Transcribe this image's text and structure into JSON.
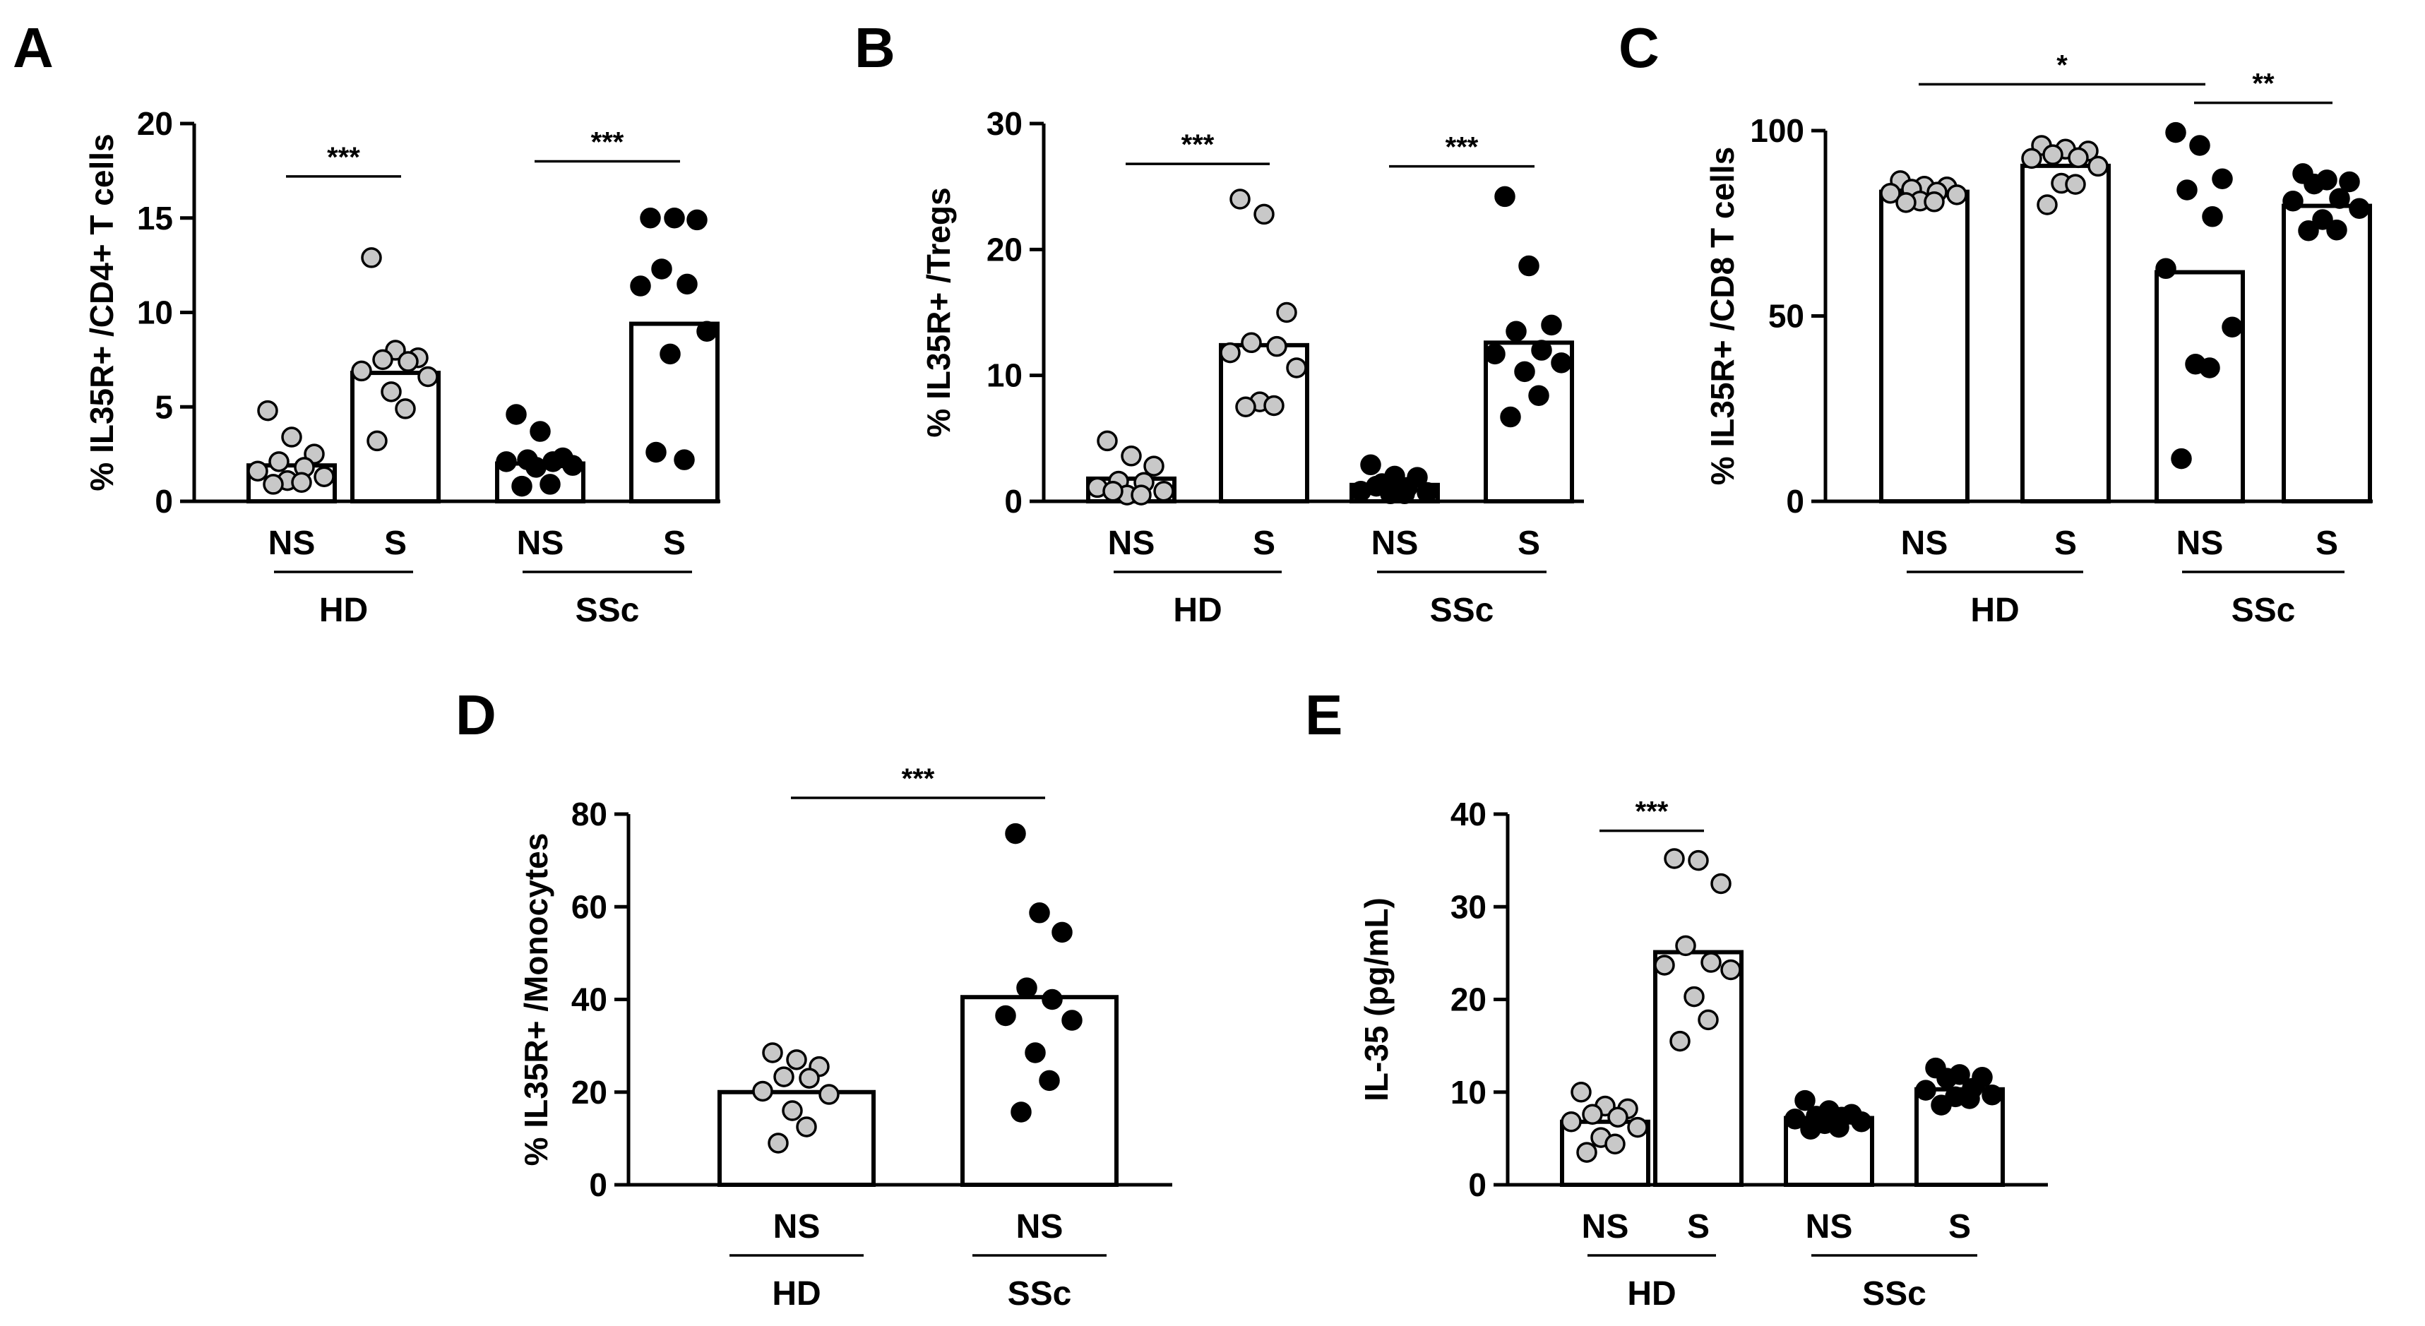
{
  "figure": {
    "background": "#ffffff",
    "colors": {
      "hd_point_fill": "#c8c8c8",
      "ssc_point_fill": "#000000",
      "stroke": "#000000"
    }
  },
  "chart_data": [
    {
      "panel": "A",
      "type": "bar",
      "ylabel": "% IL35R+ /CD4+ T cells",
      "ylim": [
        0,
        20
      ],
      "yticks": [
        0,
        5,
        10,
        15,
        20
      ],
      "categories": [
        "NS",
        "S",
        "NS",
        "S"
      ],
      "groups": [
        {
          "label": "HD",
          "bars": [
            0,
            1
          ]
        },
        {
          "label": "SSc",
          "bars": [
            2,
            3
          ]
        }
      ],
      "series": [
        {
          "name": "HD NS",
          "value": 1.9,
          "fill": "gray",
          "points": [
            4.8,
            3.4,
            2.5,
            2.1,
            1.8,
            1.6,
            1.3,
            1.1,
            1.0,
            0.9
          ]
        },
        {
          "name": "HD S",
          "value": 6.8,
          "fill": "gray",
          "points": [
            12.9,
            8.0,
            7.6,
            7.5,
            7.4,
            6.9,
            6.6,
            5.8,
            4.9,
            3.2
          ]
        },
        {
          "name": "SSc NS",
          "value": 2.0,
          "fill": "black",
          "points": [
            4.6,
            3.7,
            2.3,
            2.2,
            2.1,
            2.1,
            1.9,
            1.8,
            0.9,
            0.8
          ]
        },
        {
          "name": "SSc S",
          "value": 9.4,
          "fill": "black",
          "points": [
            15.0,
            15.0,
            14.9,
            12.3,
            11.5,
            11.4,
            9.0,
            7.8,
            2.2,
            2.6
          ]
        }
      ],
      "significance": [
        {
          "from": 0,
          "to": 1,
          "level": 17.2,
          "label": "***"
        },
        {
          "from": 2,
          "to": 3,
          "level": 18.0,
          "label": "***"
        }
      ]
    },
    {
      "panel": "B",
      "type": "bar",
      "ylabel": "% IL35R+ /Tregs",
      "ylim": [
        0,
        30
      ],
      "yticks": [
        0,
        10,
        20,
        30
      ],
      "categories": [
        "NS",
        "S",
        "NS",
        "S"
      ],
      "groups": [
        {
          "label": "HD",
          "bars": [
            0,
            1
          ]
        },
        {
          "label": "SSc",
          "bars": [
            2,
            3
          ]
        }
      ],
      "series": [
        {
          "name": "HD NS",
          "value": 1.8,
          "fill": "gray",
          "points": [
            4.8,
            3.6,
            2.8,
            1.6,
            1.5,
            1.1,
            0.8,
            0.5,
            0.5,
            0.8
          ]
        },
        {
          "name": "HD S",
          "value": 12.4,
          "fill": "gray",
          "points": [
            24.0,
            22.8,
            15.0,
            12.6,
            12.3,
            11.8,
            10.6,
            7.9,
            7.6,
            7.5
          ]
        },
        {
          "name": "SSc NS",
          "value": 1.3,
          "fill": "black",
          "points": [
            2.9,
            2.0,
            1.9,
            1.4,
            1.1,
            0.8,
            0.7,
            0.6,
            0.6,
            1.2
          ]
        },
        {
          "name": "SSc S",
          "value": 12.6,
          "fill": "black",
          "points": [
            24.2,
            18.7,
            14.0,
            13.5,
            12.0,
            11.7,
            11.0,
            10.3,
            8.4,
            6.7
          ]
        }
      ],
      "significance": [
        {
          "from": 0,
          "to": 1,
          "level": 26.8,
          "label": "***"
        },
        {
          "from": 2,
          "to": 3,
          "level": 26.6,
          "label": "***"
        }
      ]
    },
    {
      "panel": "C",
      "type": "bar",
      "ylabel": "% IL35R+ /CD8 T cells",
      "ylim": [
        0,
        100
      ],
      "yticks": [
        0,
        50,
        100
      ],
      "categories": [
        "NS",
        "S",
        "NS",
        "S"
      ],
      "groups": [
        {
          "label": "HD",
          "bars": [
            0,
            1
          ]
        },
        {
          "label": "SSc",
          "bars": [
            2,
            3
          ]
        }
      ],
      "series": [
        {
          "name": "HD NS",
          "value": 83.5,
          "fill": "gray",
          "points": [
            86.5,
            85.0,
            84.8,
            84.2,
            83.4,
            83.1,
            82.7,
            81.0,
            80.8,
            80.6
          ]
        },
        {
          "name": "HD S",
          "value": 90.5,
          "fill": "gray",
          "points": [
            96.0,
            95.0,
            94.5,
            93.5,
            92.7,
            92.5,
            90.4,
            85.8,
            85.5,
            80.0
          ]
        },
        {
          "name": "SSc NS",
          "value": 61.8,
          "fill": "black",
          "points": [
            99.5,
            96.0,
            87.0,
            84.0,
            76.8,
            62.8,
            47.0,
            37.0,
            36.0,
            11.5
          ]
        },
        {
          "name": "SSc S",
          "value": 79.7,
          "fill": "black",
          "points": [
            88.4,
            86.7,
            86.2,
            85.6,
            81.7,
            81.0,
            79.0,
            76.0,
            73.2,
            73.0
          ]
        }
      ],
      "significance": [
        {
          "from": 0,
          "to": 2,
          "level": 112.5,
          "label": "*"
        },
        {
          "from": 2,
          "to": 3,
          "level": 107.5,
          "label": "**"
        }
      ]
    },
    {
      "panel": "D",
      "type": "bar",
      "ylabel": "% IL35R+ /Monocytes",
      "ylim": [
        0,
        80
      ],
      "yticks": [
        0,
        20,
        40,
        60,
        80
      ],
      "categories": [
        "NS",
        "NS"
      ],
      "groups": [
        {
          "label": "HD",
          "bars": [
            0
          ]
        },
        {
          "label": "SSc",
          "bars": [
            1
          ]
        }
      ],
      "series": [
        {
          "name": "HD NS",
          "value": 20.0,
          "fill": "gray",
          "points": [
            28.5,
            27.0,
            25.5,
            23.3,
            23.0,
            20.2,
            19.5,
            16.0,
            12.5,
            9.0
          ]
        },
        {
          "name": "SSc NS",
          "value": 40.5,
          "fill": "black",
          "points": [
            75.8,
            58.7,
            54.5,
            42.5,
            40.0,
            36.5,
            35.5,
            28.5,
            22.5,
            15.7
          ]
        }
      ],
      "significance": [
        {
          "from": 0,
          "to": 1,
          "level": 83.5,
          "label": "***"
        }
      ]
    },
    {
      "panel": "E",
      "type": "bar",
      "ylabel": "IL-35 (pg/mL)",
      "ylim": [
        0,
        40
      ],
      "yticks": [
        0,
        10,
        20,
        30,
        40
      ],
      "categories": [
        "NS",
        "S",
        "NS",
        "S"
      ],
      "groups": [
        {
          "label": "HD",
          "bars": [
            0,
            1
          ]
        },
        {
          "label": "SSc",
          "bars": [
            2,
            3
          ]
        }
      ],
      "series": [
        {
          "name": "HD NS",
          "value": 6.8,
          "fill": "gray",
          "points": [
            10.0,
            8.5,
            8.2,
            7.6,
            7.3,
            6.8,
            6.2,
            5.1,
            4.4,
            3.5
          ]
        },
        {
          "name": "HD S",
          "value": 25.1,
          "fill": "gray",
          "points": [
            35.2,
            35.0,
            32.5,
            25.8,
            24.0,
            23.7,
            23.2,
            20.3,
            17.8,
            15.5
          ]
        },
        {
          "name": "SSc NS",
          "value": 7.2,
          "fill": "black",
          "points": [
            9.1,
            8.0,
            7.6,
            7.4,
            7.3,
            7.1,
            6.8,
            6.6,
            6.2,
            6.0
          ]
        },
        {
          "name": "SSc S",
          "value": 10.3,
          "fill": "black",
          "points": [
            12.6,
            11.9,
            11.6,
            11.5,
            10.4,
            10.2,
            9.7,
            9.5,
            9.3,
            8.6
          ]
        }
      ],
      "significance": [
        {
          "from": 0,
          "to": 1,
          "level": 38.2,
          "label": "***"
        }
      ]
    }
  ]
}
